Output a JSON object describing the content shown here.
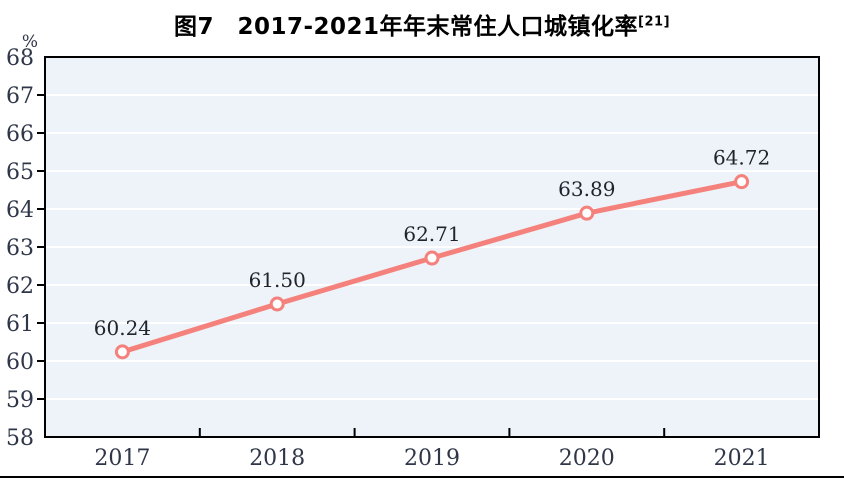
{
  "title": {
    "text": "图7　2017-2021年年末常住人口城镇化率",
    "superscript": "[21]"
  },
  "chart_data": {
    "type": "line",
    "title": "图7　2017-2021年年末常住人口城镇化率[21]",
    "categories": [
      "2017",
      "2018",
      "2019",
      "2020",
      "2021"
    ],
    "values": [
      60.24,
      61.5,
      62.71,
      63.89,
      64.72
    ],
    "point_labels": [
      "60.24",
      "61.50",
      "62.71",
      "63.89",
      "64.72"
    ],
    "ylabel": "%",
    "xlabel": "",
    "ylim": [
      58,
      68
    ],
    "ytick_step": 1,
    "grid": true,
    "legend": "none",
    "colors": {
      "line": "#f5817d",
      "marker_fill": "#ffffff",
      "plot_bg": "#edf3f8",
      "gridline": "#ffffff",
      "axis": "#000000",
      "tick_text": "#2e3648",
      "label_text": "#20242e"
    }
  }
}
